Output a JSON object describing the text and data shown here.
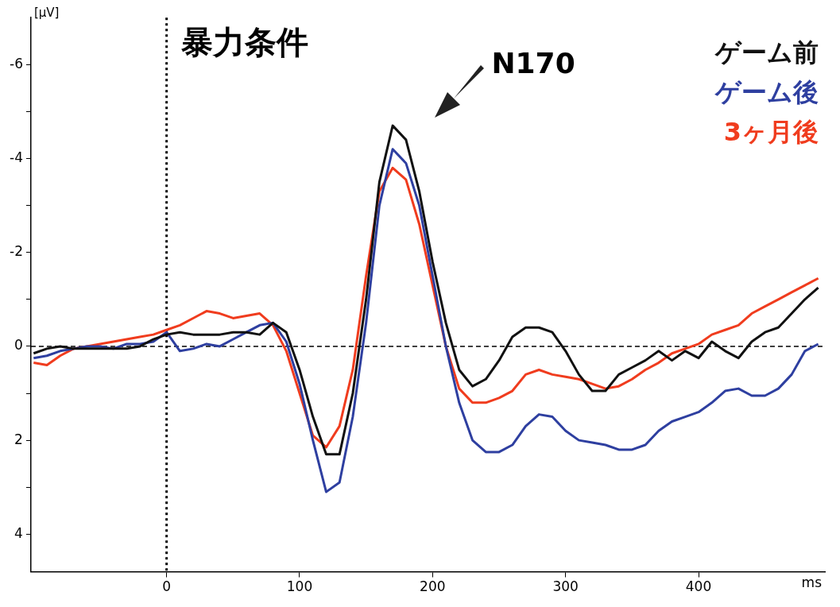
{
  "chart_data": {
    "type": "line",
    "title": "暴力条件",
    "xlabel": "ms",
    "ylabel": "[μV]",
    "xlim": [
      -102,
      495
    ],
    "xticks": [
      0,
      100,
      200,
      300,
      400
    ],
    "ylim": [
      4.8,
      -7
    ],
    "yticks": [
      -6,
      {
        "value": -5,
        "label": null
      },
      -4,
      {
        "value": -3,
        "label": null
      },
      -2,
      {
        "value": -1,
        "label": null
      },
      0,
      {
        "value": 1,
        "label": null
      },
      2,
      {
        "value": 3,
        "label": null
      },
      4
    ],
    "grid": false,
    "legend": "top right",
    "marker": "none",
    "line_style": "solid",
    "ref_lines": [
      {
        "axis": "x",
        "value": 0,
        "line_style": "dotted",
        "color": "#000000"
      },
      {
        "axis": "y",
        "value": 0,
        "line_style": "dashed",
        "color": "#000000"
      }
    ],
    "annotations": [
      "N170"
    ],
    "x": [
      -100,
      -90,
      -80,
      -70,
      -60,
      -50,
      -40,
      -30,
      -20,
      -10,
      0,
      10,
      20,
      30,
      40,
      50,
      60,
      70,
      80,
      90,
      100,
      110,
      120,
      130,
      140,
      150,
      160,
      170,
      180,
      190,
      200,
      210,
      220,
      230,
      240,
      250,
      260,
      270,
      280,
      290,
      300,
      310,
      320,
      330,
      340,
      350,
      360,
      370,
      380,
      390,
      400,
      410,
      420,
      430,
      440,
      450,
      460,
      470,
      480,
      490
    ],
    "series": [
      {
        "name": "ゲーム前",
        "color": "#111111",
        "values": [
          0.15,
          0.05,
          0.0,
          0.05,
          0.05,
          0.05,
          0.05,
          0.05,
          0.0,
          -0.15,
          -0.25,
          -0.3,
          -0.25,
          -0.25,
          -0.25,
          -0.3,
          -0.3,
          -0.25,
          -0.5,
          -0.3,
          0.5,
          1.5,
          2.3,
          2.3,
          1.0,
          -1.0,
          -3.5,
          -4.7,
          -4.4,
          -3.3,
          -1.8,
          -0.5,
          0.5,
          0.85,
          0.7,
          0.3,
          -0.2,
          -0.4,
          -0.4,
          -0.3,
          0.1,
          0.6,
          0.95,
          0.95,
          0.6,
          0.45,
          0.3,
          0.1,
          0.3,
          0.1,
          0.25,
          -0.1,
          0.1,
          0.25,
          -0.1,
          -0.3,
          -0.4,
          -0.7,
          -1.0,
          -1.25
        ]
      },
      {
        "name": "ゲーム後",
        "color": "#2e3fa0",
        "values": [
          0.25,
          0.2,
          0.1,
          0.05,
          0.0,
          0.0,
          0.05,
          -0.05,
          -0.05,
          -0.1,
          -0.3,
          0.1,
          0.05,
          -0.05,
          0.0,
          -0.15,
          -0.3,
          -0.45,
          -0.5,
          -0.1,
          0.8,
          2.0,
          3.1,
          2.9,
          1.5,
          -0.5,
          -3.0,
          -4.2,
          -3.9,
          -3.0,
          -1.5,
          0.0,
          1.2,
          2.0,
          2.25,
          2.25,
          2.1,
          1.7,
          1.45,
          1.5,
          1.8,
          2.0,
          2.05,
          2.1,
          2.2,
          2.2,
          2.1,
          1.8,
          1.6,
          1.5,
          1.4,
          1.2,
          0.95,
          0.9,
          1.05,
          1.05,
          0.9,
          0.6,
          0.1,
          -0.05
        ]
      },
      {
        "name": "3ヶ月後",
        "color": "#f03c1e",
        "values": [
          0.35,
          0.4,
          0.2,
          0.05,
          0.0,
          -0.05,
          -0.1,
          -0.15,
          -0.2,
          -0.25,
          -0.35,
          -0.45,
          -0.6,
          -0.75,
          -0.7,
          -0.6,
          -0.65,
          -0.7,
          -0.45,
          0.1,
          1.0,
          1.9,
          2.15,
          1.7,
          0.5,
          -1.5,
          -3.3,
          -3.8,
          -3.55,
          -2.6,
          -1.3,
          0.0,
          0.9,
          1.2,
          1.2,
          1.1,
          0.95,
          0.6,
          0.5,
          0.6,
          0.65,
          0.7,
          0.8,
          0.9,
          0.85,
          0.7,
          0.5,
          0.35,
          0.15,
          0.05,
          -0.05,
          -0.25,
          -0.35,
          -0.45,
          -0.7,
          -0.85,
          -1.0,
          -1.15,
          -1.3,
          -1.45
        ]
      }
    ]
  }
}
